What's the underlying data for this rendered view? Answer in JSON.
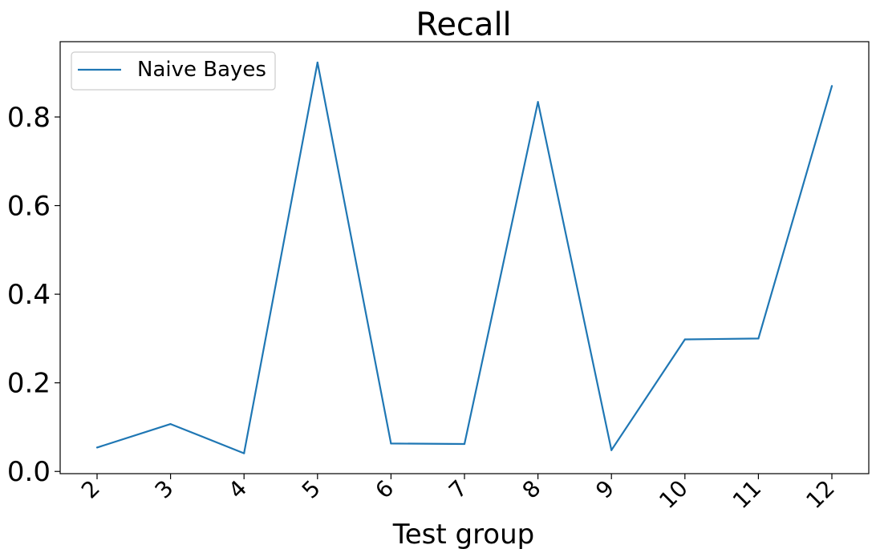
{
  "chart_data": {
    "type": "line",
    "title": "Recall",
    "xlabel": "Test group",
    "ylabel": "",
    "categories": [
      "2",
      "3",
      "4",
      "5",
      "6",
      "7",
      "8",
      "9",
      "10",
      "11",
      "12"
    ],
    "series": [
      {
        "name": "Naive Bayes",
        "color": "#1f77b4",
        "values": [
          0.054,
          0.107,
          0.041,
          0.923,
          0.063,
          0.062,
          0.834,
          0.048,
          0.298,
          0.3,
          0.87
        ]
      }
    ],
    "yticks": [
      "0.0",
      "0.2",
      "0.4",
      "0.6",
      "0.8"
    ],
    "ylim": [
      -0.005,
      0.97
    ],
    "grid": false,
    "legend_position": "top-left"
  }
}
